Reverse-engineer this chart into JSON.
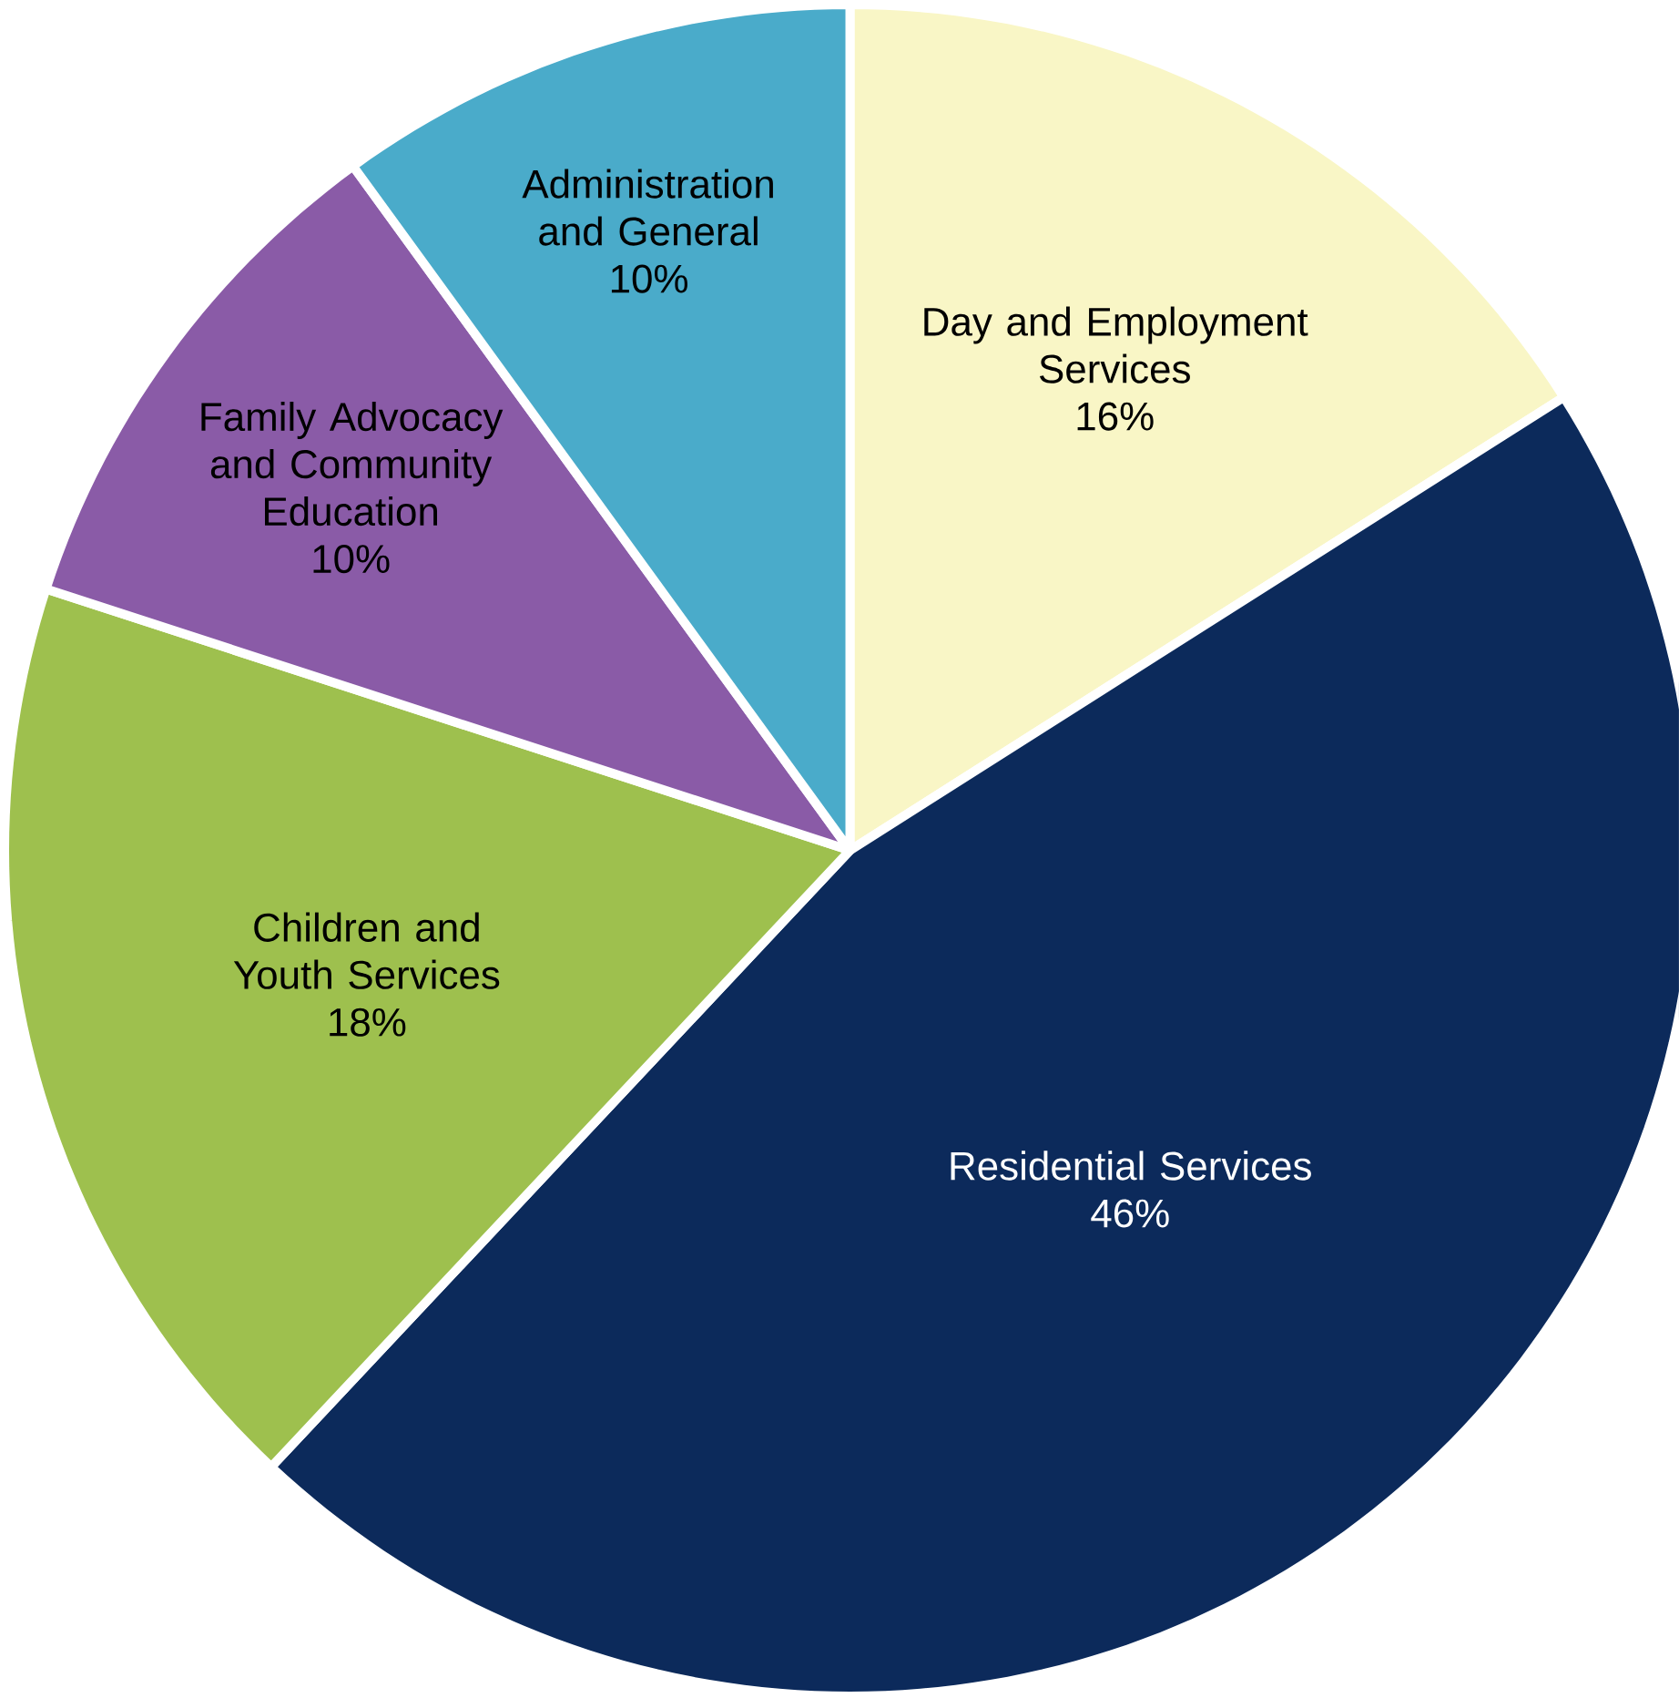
{
  "chart_data": {
    "type": "pie",
    "categories": [
      "Day and Employment Services",
      "Residential Services",
      "Children and Youth Services",
      "Family Advocacy and Community Education",
      "Administration and General"
    ],
    "values": [
      16,
      46,
      18,
      10,
      10
    ],
    "value_labels": [
      "16%",
      "46%",
      "18%",
      "10%",
      "10%"
    ],
    "colors": [
      "#f9f6c6",
      "#0c2a5b",
      "#9ec04e",
      "#8a5ba7",
      "#4aabca"
    ]
  }
}
